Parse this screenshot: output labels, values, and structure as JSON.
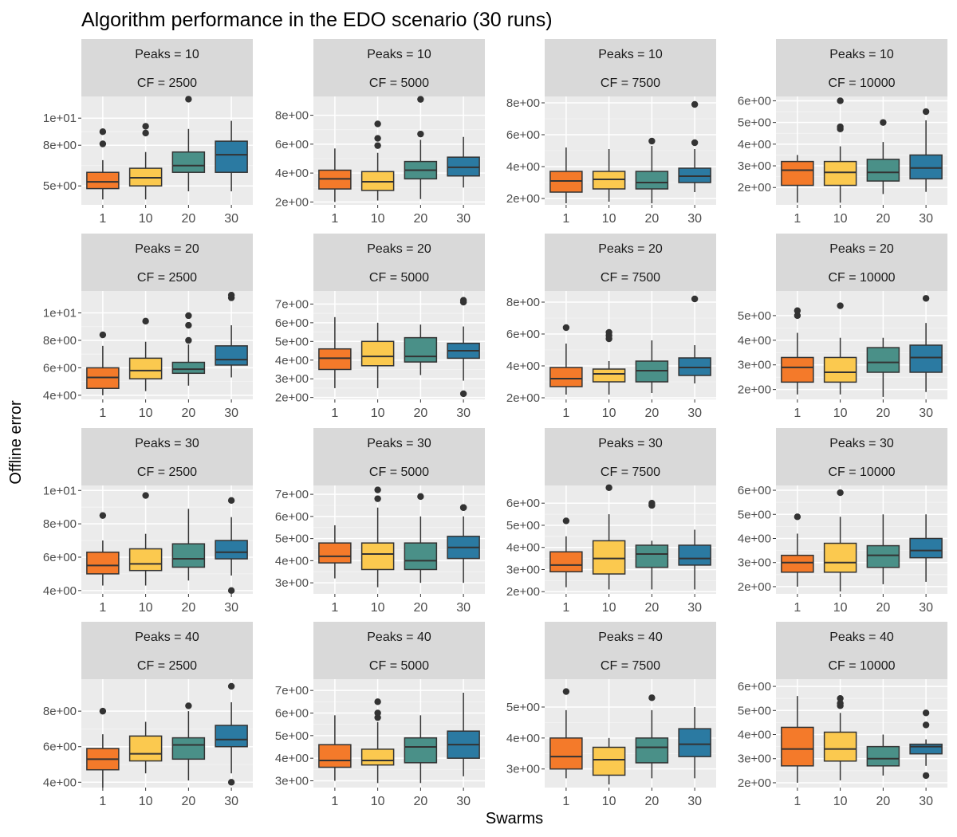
{
  "chart_data": {
    "type": "boxplot",
    "title": "Algorithm performance in the EDO scenario (30 runs)",
    "xlabel": "Swarms",
    "ylabel": "Offline error",
    "categories": [
      "1",
      "10",
      "20",
      "30"
    ],
    "fill_colors": [
      "#f47a2a",
      "#fbc94f",
      "#4a9088",
      "#2b7aa2"
    ],
    "panel_background": "#ebebeb",
    "strip_background": "#d9d9d9",
    "grid": true,
    "legend": "none",
    "facet_rows_label": "Peaks",
    "facet_cols_label": "CF",
    "panels": [
      {
        "strip": [
          "Peaks = 10",
          "CF = 2500"
        ],
        "ylim": [
          3.6,
          11.6
        ],
        "yticks": [
          5,
          8,
          10
        ],
        "yticklabels": [
          "5e+00",
          "8e+00",
          "1e+01"
        ],
        "boxes": [
          {
            "min": 4.0,
            "q1": 4.8,
            "median": 5.3,
            "q3": 6.0,
            "max": 6.9,
            "outliers": [
              8.1,
              9.0
            ]
          },
          {
            "min": 4.0,
            "q1": 5.0,
            "median": 5.6,
            "q3": 6.3,
            "max": 7.5,
            "outliers": [
              8.9,
              9.4
            ]
          },
          {
            "min": 4.6,
            "q1": 6.0,
            "median": 6.5,
            "q3": 7.5,
            "max": 9.2,
            "outliers": [
              11.4
            ]
          },
          {
            "min": 4.6,
            "q1": 6.0,
            "median": 7.3,
            "q3": 8.3,
            "max": 9.8,
            "outliers": []
          }
        ]
      },
      {
        "strip": [
          "Peaks = 10",
          "CF = 5000"
        ],
        "ylim": [
          1.8,
          9.3
        ],
        "yticks": [
          2,
          4,
          6,
          8
        ],
        "yticklabels": [
          "2e+00",
          "4e+00",
          "6e+00",
          "8e+00"
        ],
        "boxes": [
          {
            "min": 2.0,
            "q1": 2.9,
            "median": 3.6,
            "q3": 4.2,
            "max": 5.7,
            "outliers": []
          },
          {
            "min": 2.1,
            "q1": 2.8,
            "median": 3.4,
            "q3": 4.1,
            "max": 5.4,
            "outliers": [
              5.9,
              6.4,
              7.4
            ]
          },
          {
            "min": 2.2,
            "q1": 3.6,
            "median": 4.2,
            "q3": 4.8,
            "max": 6.3,
            "outliers": [
              6.7,
              9.1
            ]
          },
          {
            "min": 3.0,
            "q1": 3.8,
            "median": 4.4,
            "q3": 5.1,
            "max": 6.5,
            "outliers": []
          }
        ]
      },
      {
        "strip": [
          "Peaks = 10",
          "CF = 7500"
        ],
        "ylim": [
          1.6,
          8.4
        ],
        "yticks": [
          2,
          4,
          6,
          8
        ],
        "yticklabels": [
          "2e+00",
          "4e+00",
          "6e+00",
          "8e+00"
        ],
        "boxes": [
          {
            "min": 1.7,
            "q1": 2.4,
            "median": 3.1,
            "q3": 3.7,
            "max": 5.2,
            "outliers": []
          },
          {
            "min": 1.8,
            "q1": 2.6,
            "median": 3.2,
            "q3": 3.7,
            "max": 5.1,
            "outliers": []
          },
          {
            "min": 1.7,
            "q1": 2.6,
            "median": 3.0,
            "q3": 3.7,
            "max": 5.3,
            "outliers": [
              5.6
            ]
          },
          {
            "min": 2.4,
            "q1": 3.0,
            "median": 3.4,
            "q3": 3.9,
            "max": 5.1,
            "outliers": [
              5.5,
              7.9
            ]
          }
        ]
      },
      {
        "strip": [
          "Peaks = 10",
          "CF = 10000"
        ],
        "ylim": [
          1.2,
          6.2
        ],
        "yticks": [
          2,
          3,
          4,
          5,
          6
        ],
        "yticklabels": [
          "2e+00",
          "3e+00",
          "4e+00",
          "5e+00",
          "6e+00"
        ],
        "boxes": [
          {
            "min": 1.3,
            "q1": 2.1,
            "median": 2.8,
            "q3": 3.2,
            "max": 3.5,
            "outliers": []
          },
          {
            "min": 1.3,
            "q1": 2.1,
            "median": 2.7,
            "q3": 3.2,
            "max": 3.9,
            "outliers": [
              4.7,
              4.8,
              6.0
            ]
          },
          {
            "min": 1.7,
            "q1": 2.3,
            "median": 2.7,
            "q3": 3.3,
            "max": 4.1,
            "outliers": [
              5.0
            ]
          },
          {
            "min": 1.8,
            "q1": 2.4,
            "median": 2.9,
            "q3": 3.5,
            "max": 5.1,
            "outliers": [
              5.5
            ]
          }
        ]
      },
      {
        "strip": [
          "Peaks = 20",
          "CF = 2500"
        ],
        "ylim": [
          3.7,
          11.6
        ],
        "yticks": [
          4,
          6,
          8,
          10
        ],
        "yticklabels": [
          "4e+00",
          "6e+00",
          "8e+00",
          "1e+01"
        ],
        "boxes": [
          {
            "min": 4.0,
            "q1": 4.5,
            "median": 5.3,
            "q3": 6.0,
            "max": 7.6,
            "outliers": [
              8.4
            ]
          },
          {
            "min": 4.3,
            "q1": 5.2,
            "median": 5.8,
            "q3": 6.7,
            "max": 7.9,
            "outliers": [
              9.4
            ]
          },
          {
            "min": 4.7,
            "q1": 5.6,
            "median": 5.9,
            "q3": 6.4,
            "max": 7.7,
            "outliers": [
              8.0,
              9.1,
              9.8
            ]
          },
          {
            "min": 5.3,
            "q1": 6.2,
            "median": 6.6,
            "q3": 7.6,
            "max": 9.1,
            "outliers": [
              11.1,
              11.3
            ]
          }
        ]
      },
      {
        "strip": [
          "Peaks = 20",
          "CF = 5000"
        ],
        "ylim": [
          1.9,
          7.7
        ],
        "yticks": [
          2,
          3,
          4,
          5,
          6,
          7
        ],
        "yticklabels": [
          "2e+00",
          "3e+00",
          "4e+00",
          "5e+00",
          "6e+00",
          "7e+00"
        ],
        "boxes": [
          {
            "min": 2.5,
            "q1": 3.5,
            "median": 4.1,
            "q3": 4.6,
            "max": 6.3,
            "outliers": []
          },
          {
            "min": 2.5,
            "q1": 3.7,
            "median": 4.2,
            "q3": 5.0,
            "max": 6.0,
            "outliers": []
          },
          {
            "min": 3.2,
            "q1": 3.9,
            "median": 4.2,
            "q3": 5.2,
            "max": 5.9,
            "outliers": []
          },
          {
            "min": 2.9,
            "q1": 4.1,
            "median": 4.5,
            "q3": 4.9,
            "max": 5.8,
            "outliers": [
              2.2,
              7.1,
              7.2
            ]
          }
        ]
      },
      {
        "strip": [
          "Peaks = 20",
          "CF = 7500"
        ],
        "ylim": [
          1.9,
          8.7
        ],
        "yticks": [
          2,
          4,
          6,
          8
        ],
        "yticklabels": [
          "2e+00",
          "4e+00",
          "6e+00",
          "8e+00"
        ],
        "boxes": [
          {
            "min": 2.2,
            "q1": 2.7,
            "median": 3.2,
            "q3": 3.9,
            "max": 5.4,
            "outliers": [
              6.4
            ]
          },
          {
            "min": 2.2,
            "q1": 3.0,
            "median": 3.5,
            "q3": 3.8,
            "max": 4.3,
            "outliers": [
              5.7,
              5.9,
              6.1
            ]
          },
          {
            "min": 2.3,
            "q1": 3.0,
            "median": 3.7,
            "q3": 4.3,
            "max": 5.6,
            "outliers": []
          },
          {
            "min": 2.9,
            "q1": 3.4,
            "median": 3.9,
            "q3": 4.5,
            "max": 5.3,
            "outliers": [
              8.2
            ]
          }
        ]
      },
      {
        "strip": [
          "Peaks = 20",
          "CF = 10000"
        ],
        "ylim": [
          1.6,
          6.0
        ],
        "yticks": [
          2,
          3,
          4,
          5
        ],
        "yticklabels": [
          "2e+00",
          "3e+00",
          "4e+00",
          "5e+00"
        ],
        "boxes": [
          {
            "min": 1.8,
            "q1": 2.3,
            "median": 2.9,
            "q3": 3.3,
            "max": 4.3,
            "outliers": [
              5.0,
              5.2
            ]
          },
          {
            "min": 1.8,
            "q1": 2.3,
            "median": 2.7,
            "q3": 3.3,
            "max": 4.1,
            "outliers": [
              5.4
            ]
          },
          {
            "min": 1.7,
            "q1": 2.7,
            "median": 3.1,
            "q3": 3.7,
            "max": 4.1,
            "outliers": []
          },
          {
            "min": 1.9,
            "q1": 2.7,
            "median": 3.3,
            "q3": 3.8,
            "max": 4.7,
            "outliers": [
              5.7
            ]
          }
        ]
      },
      {
        "strip": [
          "Peaks = 30",
          "CF = 2500"
        ],
        "ylim": [
          3.8,
          10.3
        ],
        "yticks": [
          4,
          6,
          8,
          10
        ],
        "yticklabels": [
          "4e+00",
          "6e+00",
          "8e+00",
          "1e+01"
        ],
        "boxes": [
          {
            "min": 4.3,
            "q1": 5.0,
            "median": 5.5,
            "q3": 6.3,
            "max": 7.0,
            "outliers": [
              8.5
            ]
          },
          {
            "min": 4.3,
            "q1": 5.2,
            "median": 5.6,
            "q3": 6.5,
            "max": 7.4,
            "outliers": [
              9.7
            ]
          },
          {
            "min": 4.6,
            "q1": 5.4,
            "median": 5.9,
            "q3": 6.8,
            "max": 8.9,
            "outliers": []
          },
          {
            "min": 4.9,
            "q1": 5.9,
            "median": 6.3,
            "q3": 7.0,
            "max": 8.4,
            "outliers": [
              4.0,
              9.4
            ]
          }
        ]
      },
      {
        "strip": [
          "Peaks = 30",
          "CF = 5000"
        ],
        "ylim": [
          2.5,
          7.4
        ],
        "yticks": [
          3,
          4,
          5,
          6,
          7
        ],
        "yticklabels": [
          "3e+00",
          "4e+00",
          "5e+00",
          "6e+00",
          "7e+00"
        ],
        "boxes": [
          {
            "min": 3.2,
            "q1": 3.9,
            "median": 4.2,
            "q3": 4.8,
            "max": 5.6,
            "outliers": []
          },
          {
            "min": 2.8,
            "q1": 3.6,
            "median": 4.3,
            "q3": 4.8,
            "max": 6.4,
            "outliers": [
              6.8,
              7.2
            ]
          },
          {
            "min": 3.0,
            "q1": 3.6,
            "median": 4.0,
            "q3": 4.8,
            "max": 6.0,
            "outliers": [
              6.9
            ]
          },
          {
            "min": 3.0,
            "q1": 4.1,
            "median": 4.6,
            "q3": 5.1,
            "max": 6.0,
            "outliers": [
              6.4,
              6.4
            ]
          }
        ]
      },
      {
        "strip": [
          "Peaks = 30",
          "CF = 7500"
        ],
        "ylim": [
          1.9,
          6.8
        ],
        "yticks": [
          2,
          3,
          4,
          5,
          6
        ],
        "yticklabels": [
          "2e+00",
          "3e+00",
          "4e+00",
          "5e+00",
          "6e+00"
        ],
        "boxes": [
          {
            "min": 2.2,
            "q1": 2.9,
            "median": 3.2,
            "q3": 3.8,
            "max": 4.5,
            "outliers": [
              5.2
            ]
          },
          {
            "min": 2.1,
            "q1": 2.8,
            "median": 3.5,
            "q3": 4.3,
            "max": 5.5,
            "outliers": [
              6.7
            ]
          },
          {
            "min": 2.1,
            "q1": 3.1,
            "median": 3.7,
            "q3": 4.1,
            "max": 4.3,
            "outliers": [
              5.9,
              6.0
            ]
          },
          {
            "min": 2.1,
            "q1": 3.2,
            "median": 3.5,
            "q3": 4.1,
            "max": 4.8,
            "outliers": []
          }
        ]
      },
      {
        "strip": [
          "Peaks = 30",
          "CF = 10000"
        ],
        "ylim": [
          1.7,
          6.2
        ],
        "yticks": [
          2,
          3,
          4,
          5,
          6
        ],
        "yticklabels": [
          "2e+00",
          "3e+00",
          "4e+00",
          "5e+00",
          "6e+00"
        ],
        "boxes": [
          {
            "min": 2.0,
            "q1": 2.6,
            "median": 3.0,
            "q3": 3.3,
            "max": 4.2,
            "outliers": [
              4.9
            ]
          },
          {
            "min": 1.8,
            "q1": 2.6,
            "median": 3.0,
            "q3": 3.8,
            "max": 4.9,
            "outliers": [
              5.9
            ]
          },
          {
            "min": 2.1,
            "q1": 2.8,
            "median": 3.3,
            "q3": 3.7,
            "max": 5.0,
            "outliers": []
          },
          {
            "min": 2.2,
            "q1": 3.2,
            "median": 3.5,
            "q3": 4.0,
            "max": 5.0,
            "outliers": []
          }
        ]
      },
      {
        "strip": [
          "Peaks = 40",
          "CF = 2500"
        ],
        "ylim": [
          3.7,
          9.8
        ],
        "yticks": [
          4,
          6,
          8
        ],
        "yticklabels": [
          "4e+00",
          "6e+00",
          "8e+00"
        ],
        "boxes": [
          {
            "min": 3.7,
            "q1": 4.7,
            "median": 5.3,
            "q3": 5.9,
            "max": 6.7,
            "outliers": [
              8.0
            ]
          },
          {
            "min": 4.5,
            "q1": 5.2,
            "median": 5.6,
            "q3": 6.6,
            "max": 7.4,
            "outliers": []
          },
          {
            "min": 4.1,
            "q1": 5.3,
            "median": 6.1,
            "q3": 6.5,
            "max": 8.0,
            "outliers": [
              8.3
            ]
          },
          {
            "min": 4.5,
            "q1": 6.0,
            "median": 6.4,
            "q3": 7.2,
            "max": 8.5,
            "outliers": [
              4.0,
              9.4
            ]
          }
        ]
      },
      {
        "strip": [
          "Peaks = 40",
          "CF = 5000"
        ],
        "ylim": [
          2.7,
          7.5
        ],
        "yticks": [
          3,
          4,
          5,
          6,
          7
        ],
        "yticklabels": [
          "3e+00",
          "4e+00",
          "5e+00",
          "6e+00",
          "7e+00"
        ],
        "boxes": [
          {
            "min": 3.0,
            "q1": 3.6,
            "median": 3.9,
            "q3": 4.6,
            "max": 5.9,
            "outliers": []
          },
          {
            "min": 2.9,
            "q1": 3.7,
            "median": 3.9,
            "q3": 4.4,
            "max": 5.6,
            "outliers": [
              5.8,
              6.0,
              6.5
            ]
          },
          {
            "min": 2.9,
            "q1": 3.8,
            "median": 4.5,
            "q3": 4.9,
            "max": 5.9,
            "outliers": []
          },
          {
            "min": 3.2,
            "q1": 4.0,
            "median": 4.6,
            "q3": 5.2,
            "max": 6.9,
            "outliers": []
          }
        ]
      },
      {
        "strip": [
          "Peaks = 40",
          "CF = 7500"
        ],
        "ylim": [
          2.4,
          5.9
        ],
        "yticks": [
          3,
          4,
          5
        ],
        "yticklabels": [
          "3e+00",
          "4e+00",
          "5e+00"
        ],
        "boxes": [
          {
            "min": 2.7,
            "q1": 3.0,
            "median": 3.4,
            "q3": 4.0,
            "max": 4.9,
            "outliers": [
              5.5
            ]
          },
          {
            "min": 2.5,
            "q1": 2.8,
            "median": 3.3,
            "q3": 3.7,
            "max": 4.0,
            "outliers": []
          },
          {
            "min": 2.7,
            "q1": 3.2,
            "median": 3.7,
            "q3": 4.0,
            "max": 4.9,
            "outliers": [
              5.3
            ]
          },
          {
            "min": 2.7,
            "q1": 3.4,
            "median": 3.8,
            "q3": 4.3,
            "max": 5.0,
            "outliers": []
          }
        ]
      },
      {
        "strip": [
          "Peaks = 40",
          "CF = 10000"
        ],
        "ylim": [
          1.8,
          6.3
        ],
        "yticks": [
          2,
          3,
          4,
          5,
          6
        ],
        "yticklabels": [
          "2e+00",
          "3e+00",
          "4e+00",
          "5e+00",
          "6e+00"
        ],
        "boxes": [
          {
            "min": 2.0,
            "q1": 2.7,
            "median": 3.4,
            "q3": 4.3,
            "max": 5.6,
            "outliers": []
          },
          {
            "min": 2.1,
            "q1": 2.9,
            "median": 3.4,
            "q3": 4.1,
            "max": 4.9,
            "outliers": [
              5.2,
              5.3,
              5.5
            ]
          },
          {
            "min": 2.3,
            "q1": 2.7,
            "median": 3.0,
            "q3": 3.5,
            "max": 4.0,
            "outliers": []
          },
          {
            "min": 2.7,
            "q1": 3.2,
            "median": 3.5,
            "q3": 3.6,
            "max": 3.8,
            "outliers": [
              2.3,
              4.4,
              4.9
            ]
          }
        ]
      }
    ]
  }
}
